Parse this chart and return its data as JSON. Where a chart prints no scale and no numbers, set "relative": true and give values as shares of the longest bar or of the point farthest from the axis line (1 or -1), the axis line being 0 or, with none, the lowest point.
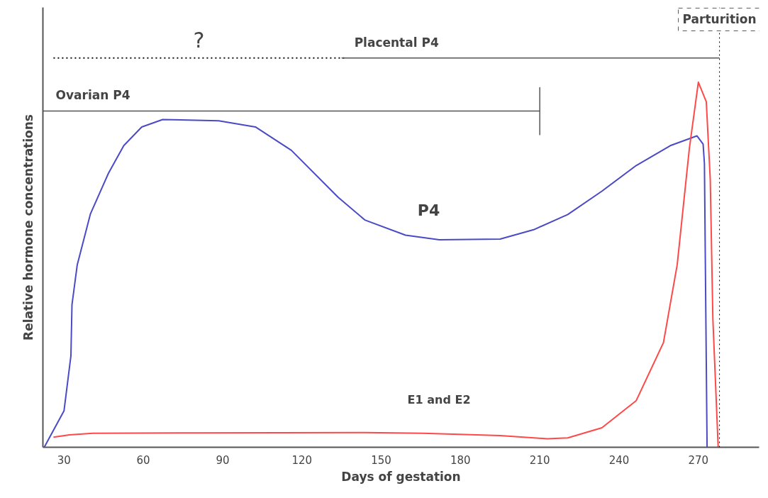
{
  "chart_data": {
    "type": "line",
    "relative": true,
    "xlabel": "Days of gestation",
    "ylabel": "Relative hormone concentrations",
    "xlim": [
      22,
      293
    ],
    "xticks": [
      30,
      60,
      90,
      120,
      150,
      180,
      210,
      240,
      270
    ],
    "grid": false,
    "series": [
      {
        "name": "P4",
        "color": "#4a4ac6",
        "x": [
          22.5,
          30,
          32.6,
          33,
          35,
          40,
          46.8,
          52.6,
          59.4,
          67.3,
          88.5,
          102.4,
          116,
          133.6,
          143.8,
          159.2,
          172,
          195,
          207.7,
          220.6,
          233.5,
          246.5,
          259.4,
          269.5,
          271.8,
          272.3,
          273.3
        ],
        "values": [
          0,
          0.094,
          0.235,
          0.366,
          0.469,
          0.6,
          0.704,
          0.775,
          0.823,
          0.842,
          0.839,
          0.823,
          0.763,
          0.643,
          0.584,
          0.545,
          0.533,
          0.535,
          0.559,
          0.598,
          0.658,
          0.724,
          0.775,
          0.8,
          0.779,
          0.729,
          0
        ]
      },
      {
        "name": "E1 and E2",
        "color": "#ff4848",
        "x": [
          26,
          32,
          40.9,
          80,
          143.8,
          165.8,
          195,
          212.8,
          220.6,
          233.5,
          246.5,
          256.8,
          262,
          266.6,
          270,
          273,
          274.5,
          275.5,
          277.5
        ],
        "values": [
          0.026,
          0.032,
          0.036,
          0.037,
          0.038,
          0.036,
          0.03,
          0.022,
          0.024,
          0.05,
          0.12,
          0.269,
          0.469,
          0.768,
          0.938,
          0.888,
          0.689,
          0.329,
          0
        ]
      },
      {
        "color": "#555555",
        "x": [
          22,
          210,
          210,
          210
        ],
        "values": [
          0.864,
          0.864,
          0.924,
          0.802
        ]
      },
      {
        "color": "#111111",
        "line_style": "dotted",
        "x": [
          26,
          137
        ],
        "values": [
          1,
          1
        ]
      },
      {
        "color": "#555555",
        "x": [
          135,
          278
        ],
        "values": [
          1,
          1
        ]
      }
    ],
    "annotations": [
      {
        "text": "Ovarian P4",
        "x": 22,
        "y": 0.864
      },
      {
        "text": "?",
        "x": 81,
        "y": 1
      },
      {
        "text": "Placental P4",
        "x": 135,
        "y": 1
      }
    ],
    "ref_lines": [
      {
        "axis": "x",
        "value": 278,
        "label": "Parturition",
        "line_style": "dotted"
      }
    ]
  }
}
